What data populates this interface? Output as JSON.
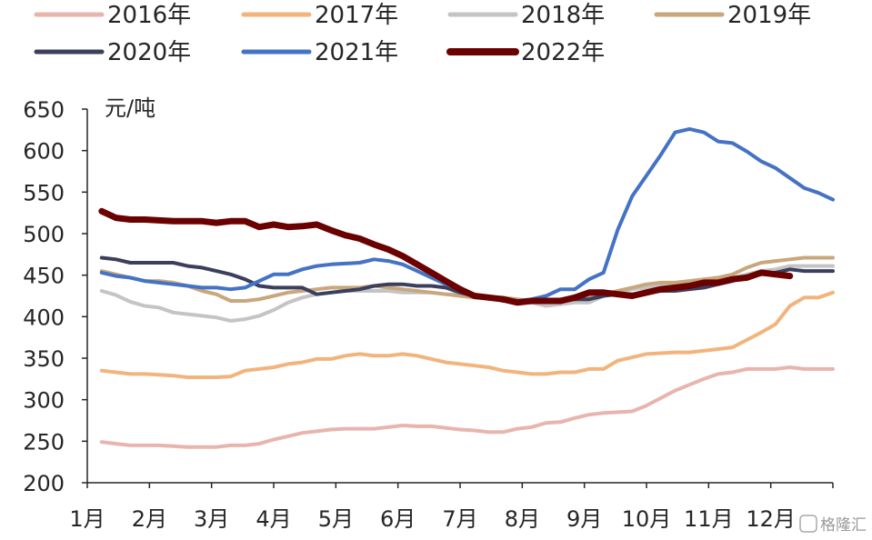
{
  "chart_data": {
    "type": "line",
    "title": "",
    "ylabel": "元/吨",
    "xlabel": "",
    "ylim": [
      200,
      650
    ],
    "yticks": [
      200,
      250,
      300,
      350,
      400,
      450,
      500,
      550,
      600,
      650
    ],
    "months": [
      "1月",
      "2月",
      "3月",
      "4月",
      "5月",
      "6月",
      "7月",
      "8月",
      "9月",
      "10月",
      "11月",
      "12月"
    ],
    "x_unit": "week",
    "x_range": [
      1,
      53
    ],
    "grid": false,
    "legend_position": "top",
    "series": [
      {
        "name": "2016年",
        "color": "#E8B5AE",
        "width": 4,
        "x": [
          2,
          3,
          4,
          5,
          6,
          7,
          8,
          9,
          10,
          11,
          12,
          13,
          14,
          15,
          16,
          17,
          18,
          19,
          20,
          21,
          22,
          23,
          24,
          25,
          26,
          27,
          28,
          29,
          30,
          31,
          32,
          33,
          34,
          35,
          36,
          37,
          38,
          39,
          40,
          41,
          42,
          43,
          44,
          45,
          46,
          47,
          48,
          49,
          50,
          51,
          52,
          53
        ],
        "values": [
          249,
          247,
          245,
          245,
          245,
          244,
          243,
          243,
          243,
          245,
          245,
          247,
          252,
          256,
          260,
          262,
          264,
          265,
          265,
          265,
          267,
          269,
          268,
          268,
          266,
          264,
          263,
          261,
          261,
          265,
          267,
          272,
          273,
          278,
          282,
          284,
          285,
          286,
          293,
          302,
          311,
          318,
          325,
          331,
          333,
          337,
          337,
          337,
          339,
          337,
          337,
          337
        ]
      },
      {
        "name": "2017年",
        "color": "#F2B47C",
        "width": 4,
        "x": [
          2,
          3,
          4,
          5,
          6,
          7,
          8,
          9,
          10,
          11,
          12,
          13,
          14,
          15,
          16,
          17,
          18,
          19,
          20,
          21,
          22,
          23,
          24,
          25,
          26,
          27,
          28,
          29,
          30,
          31,
          32,
          33,
          34,
          35,
          36,
          37,
          38,
          39,
          40,
          41,
          42,
          43,
          44,
          45,
          46,
          47,
          48,
          49,
          50,
          51,
          52,
          53
        ],
        "values": [
          335,
          333,
          331,
          331,
          330,
          329,
          327,
          327,
          327,
          328,
          335,
          337,
          339,
          343,
          345,
          349,
          349,
          353,
          355,
          353,
          353,
          355,
          353,
          349,
          345,
          343,
          341,
          339,
          335,
          333,
          331,
          331,
          333,
          333,
          337,
          337,
          347,
          351,
          355,
          356,
          357,
          357,
          359,
          361,
          363,
          372,
          381,
          391,
          413,
          423,
          423,
          429
        ]
      },
      {
        "name": "2018年",
        "color": "#C4C4C4",
        "width": 4,
        "x": [
          2,
          3,
          4,
          5,
          6,
          7,
          8,
          9,
          10,
          11,
          12,
          13,
          14,
          15,
          16,
          17,
          18,
          19,
          20,
          21,
          22,
          23,
          24,
          25,
          26,
          27,
          28,
          29,
          30,
          31,
          32,
          33,
          34,
          35,
          36,
          37,
          38,
          39,
          40,
          41,
          42,
          43,
          44,
          45,
          46,
          47,
          48,
          49,
          50,
          51,
          52,
          53
        ],
        "values": [
          431,
          426,
          418,
          413,
          411,
          405,
          403,
          401,
          399,
          395,
          397,
          401,
          408,
          417,
          423,
          427,
          429,
          431,
          431,
          431,
          431,
          429,
          429,
          429,
          427,
          427,
          425,
          423,
          421,
          419,
          417,
          413,
          415,
          417,
          417,
          425,
          429,
          433,
          435,
          437,
          437,
          439,
          441,
          443,
          447,
          451,
          455,
          457,
          461,
          461,
          461,
          461
        ]
      },
      {
        "name": "2019年",
        "color": "#C9A77C",
        "width": 4,
        "x": [
          2,
          3,
          4,
          5,
          6,
          7,
          8,
          9,
          10,
          11,
          12,
          13,
          14,
          15,
          16,
          17,
          18,
          19,
          20,
          21,
          22,
          23,
          24,
          25,
          26,
          27,
          28,
          29,
          30,
          31,
          32,
          33,
          34,
          35,
          36,
          37,
          38,
          39,
          40,
          41,
          42,
          43,
          44,
          45,
          46,
          47,
          48,
          49,
          50,
          51,
          52,
          53
        ],
        "values": [
          455,
          451,
          447,
          443,
          443,
          441,
          437,
          431,
          427,
          419,
          419,
          421,
          425,
          429,
          431,
          433,
          435,
          435,
          435,
          437,
          435,
          433,
          431,
          429,
          427,
          425,
          423,
          423,
          423,
          421,
          419,
          419,
          421,
          423,
          425,
          427,
          431,
          435,
          439,
          441,
          441,
          443,
          445,
          447,
          451,
          459,
          465,
          467,
          469,
          471,
          471,
          471
        ]
      },
      {
        "name": "2020年",
        "color": "#3B3F5E",
        "width": 4,
        "x": [
          2,
          3,
          4,
          5,
          6,
          7,
          8,
          9,
          10,
          11,
          12,
          13,
          14,
          15,
          16,
          17,
          18,
          19,
          20,
          21,
          22,
          23,
          24,
          25,
          26,
          27,
          28,
          29,
          30,
          31,
          32,
          33,
          34,
          35,
          36,
          37,
          38,
          39,
          40,
          41,
          42,
          43,
          44,
          45,
          46,
          47,
          48,
          49,
          50,
          51,
          52,
          53
        ],
        "values": [
          471,
          469,
          465,
          465,
          465,
          465,
          461,
          459,
          455,
          451,
          445,
          437,
          435,
          435,
          435,
          427,
          429,
          431,
          433,
          437,
          439,
          439,
          437,
          437,
          435,
          429,
          425,
          423,
          421,
          419,
          419,
          419,
          419,
          421,
          421,
          425,
          427,
          427,
          429,
          431,
          431,
          433,
          435,
          439,
          443,
          449,
          451,
          453,
          457,
          455,
          455,
          455
        ]
      },
      {
        "name": "2021年",
        "color": "#4472C4",
        "width": 4,
        "x": [
          2,
          3,
          4,
          5,
          6,
          7,
          8,
          9,
          10,
          11,
          12,
          13,
          14,
          15,
          16,
          17,
          18,
          19,
          20,
          21,
          22,
          23,
          24,
          25,
          26,
          27,
          28,
          29,
          30,
          31,
          32,
          33,
          34,
          35,
          36,
          37,
          38,
          39,
          40,
          41,
          42,
          43,
          44,
          45,
          46,
          47,
          48,
          49,
          50,
          51,
          52,
          53
        ],
        "values": [
          453,
          449,
          447,
          443,
          441,
          439,
          437,
          435,
          435,
          433,
          435,
          443,
          451,
          451,
          457,
          461,
          463,
          464,
          465,
          469,
          467,
          463,
          455,
          447,
          439,
          435,
          425,
          423,
          419,
          419,
          421,
          425,
          433,
          433,
          445,
          453,
          505,
          545,
          570,
          595,
          622,
          626,
          622,
          611,
          609,
          599,
          587,
          579,
          567,
          555,
          549,
          541
        ]
      },
      {
        "name": "2022年",
        "color": "#6B0000",
        "width": 7,
        "x": [
          2,
          3,
          4,
          5,
          6,
          7,
          8,
          9,
          10,
          11,
          12,
          13,
          14,
          15,
          16,
          17,
          18,
          19,
          20,
          21,
          22,
          23,
          24,
          25,
          26,
          27,
          28,
          29,
          30,
          31,
          32,
          33,
          34,
          35,
          36,
          37,
          38,
          39,
          40,
          41,
          42,
          43,
          44,
          45,
          46,
          47,
          48,
          49,
          50
        ],
        "values": [
          527,
          519,
          517,
          517,
          516,
          515,
          515,
          515,
          513,
          515,
          515,
          508,
          511,
          508,
          509,
          511,
          504,
          498,
          494,
          487,
          481,
          473,
          463,
          453,
          443,
          433,
          425,
          423,
          421,
          417,
          419,
          419,
          419,
          423,
          429,
          429,
          427,
          425,
          429,
          433,
          435,
          437,
          441,
          441,
          445,
          447,
          453,
          451,
          449
        ]
      }
    ]
  },
  "watermark": "格隆汇"
}
